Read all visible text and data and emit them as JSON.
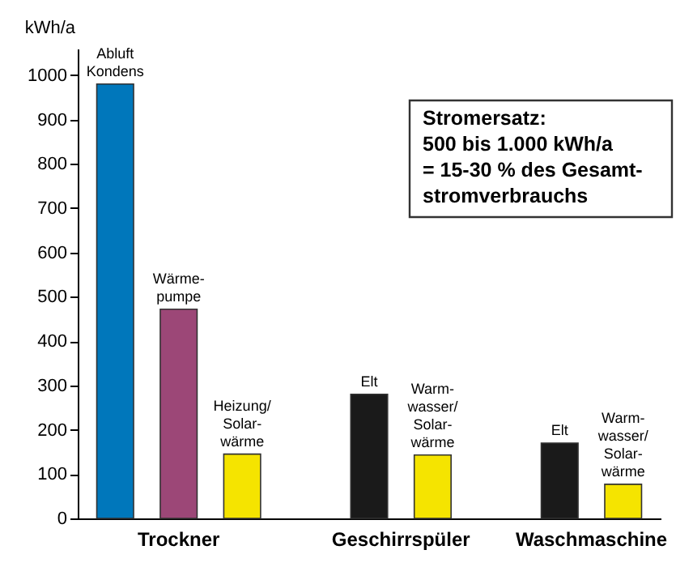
{
  "chart_data": {
    "type": "bar",
    "ylabel": "kWh/a",
    "categories": [
      "Abluft\nKondens",
      "Wärme-\npumpe",
      "Heizung/\nSolar-\nwärme",
      null,
      "Elt",
      "Warm-\nwasser/\nSolar-\nwärme",
      null,
      "Elt",
      "Warm-\nwasser/\nSolar-\nwärme"
    ],
    "values": [
      980,
      472,
      145,
      null,
      280,
      143,
      null,
      170,
      77
    ],
    "colors": [
      "#0077bb",
      "#9c4777",
      "#f5e400",
      null,
      "#1a1a1a",
      "#f5e400",
      null,
      "#1a1a1a",
      "#f5e400"
    ],
    "ylim": [
      0,
      1060
    ],
    "yticks": [
      0,
      100,
      200,
      300,
      400,
      500,
      600,
      700,
      800,
      900,
      1000
    ],
    "annotations": [
      "Trockner",
      "Geschirrspüler",
      "Waschmaschine",
      "Stromersatz:\n500 bis 1.000 kWh/a\n= 15-30 % des Gesamt-\n   stromverbrauchs"
    ]
  }
}
